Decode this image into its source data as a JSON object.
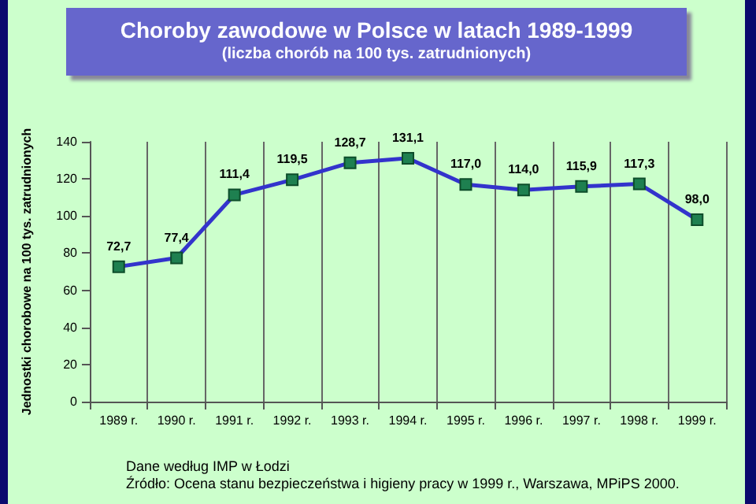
{
  "chart_data": {
    "type": "line",
    "title": "Choroby zawodowe w Polsce w latach 1989-1999",
    "subtitle": "(liczba chorób na 100 tys. zatrudnionych)",
    "ylabel": "Jednostki chorobowe na 100 tys. zatrudnionych",
    "categories": [
      "1989 r.",
      "1990 r.",
      "1991 r.",
      "1992 r.",
      "1993 r.",
      "1994 r.",
      "1995 r.",
      "1996 r.",
      "1997 r.",
      "1998 r.",
      "1999 r."
    ],
    "series": [
      {
        "color": "#3333cc",
        "values": [
          72.7,
          77.4,
          111.4,
          119.5,
          128.7,
          131.1,
          117.0,
          114.0,
          115.9,
          117.3,
          98.0
        ],
        "value_labels": [
          "72,7",
          "77,4",
          "111,4",
          "119,5",
          "128,7",
          "131,1",
          "117,0",
          "114,0",
          "115,9",
          "117,3",
          "98,0"
        ]
      }
    ],
    "ylim": [
      0,
      140
    ],
    "yticks": [
      0,
      20,
      40,
      60,
      80,
      100,
      120,
      140
    ],
    "grid": "x",
    "marker": "square",
    "line_style": "solid",
    "annotations": [
      "Dane według IMP w Łodzi",
      "Źródło: Ocena stanu bezpieczeństwa i higieny pracy w 1999 r., Warszawa, MPiPS 2000."
    ]
  }
}
